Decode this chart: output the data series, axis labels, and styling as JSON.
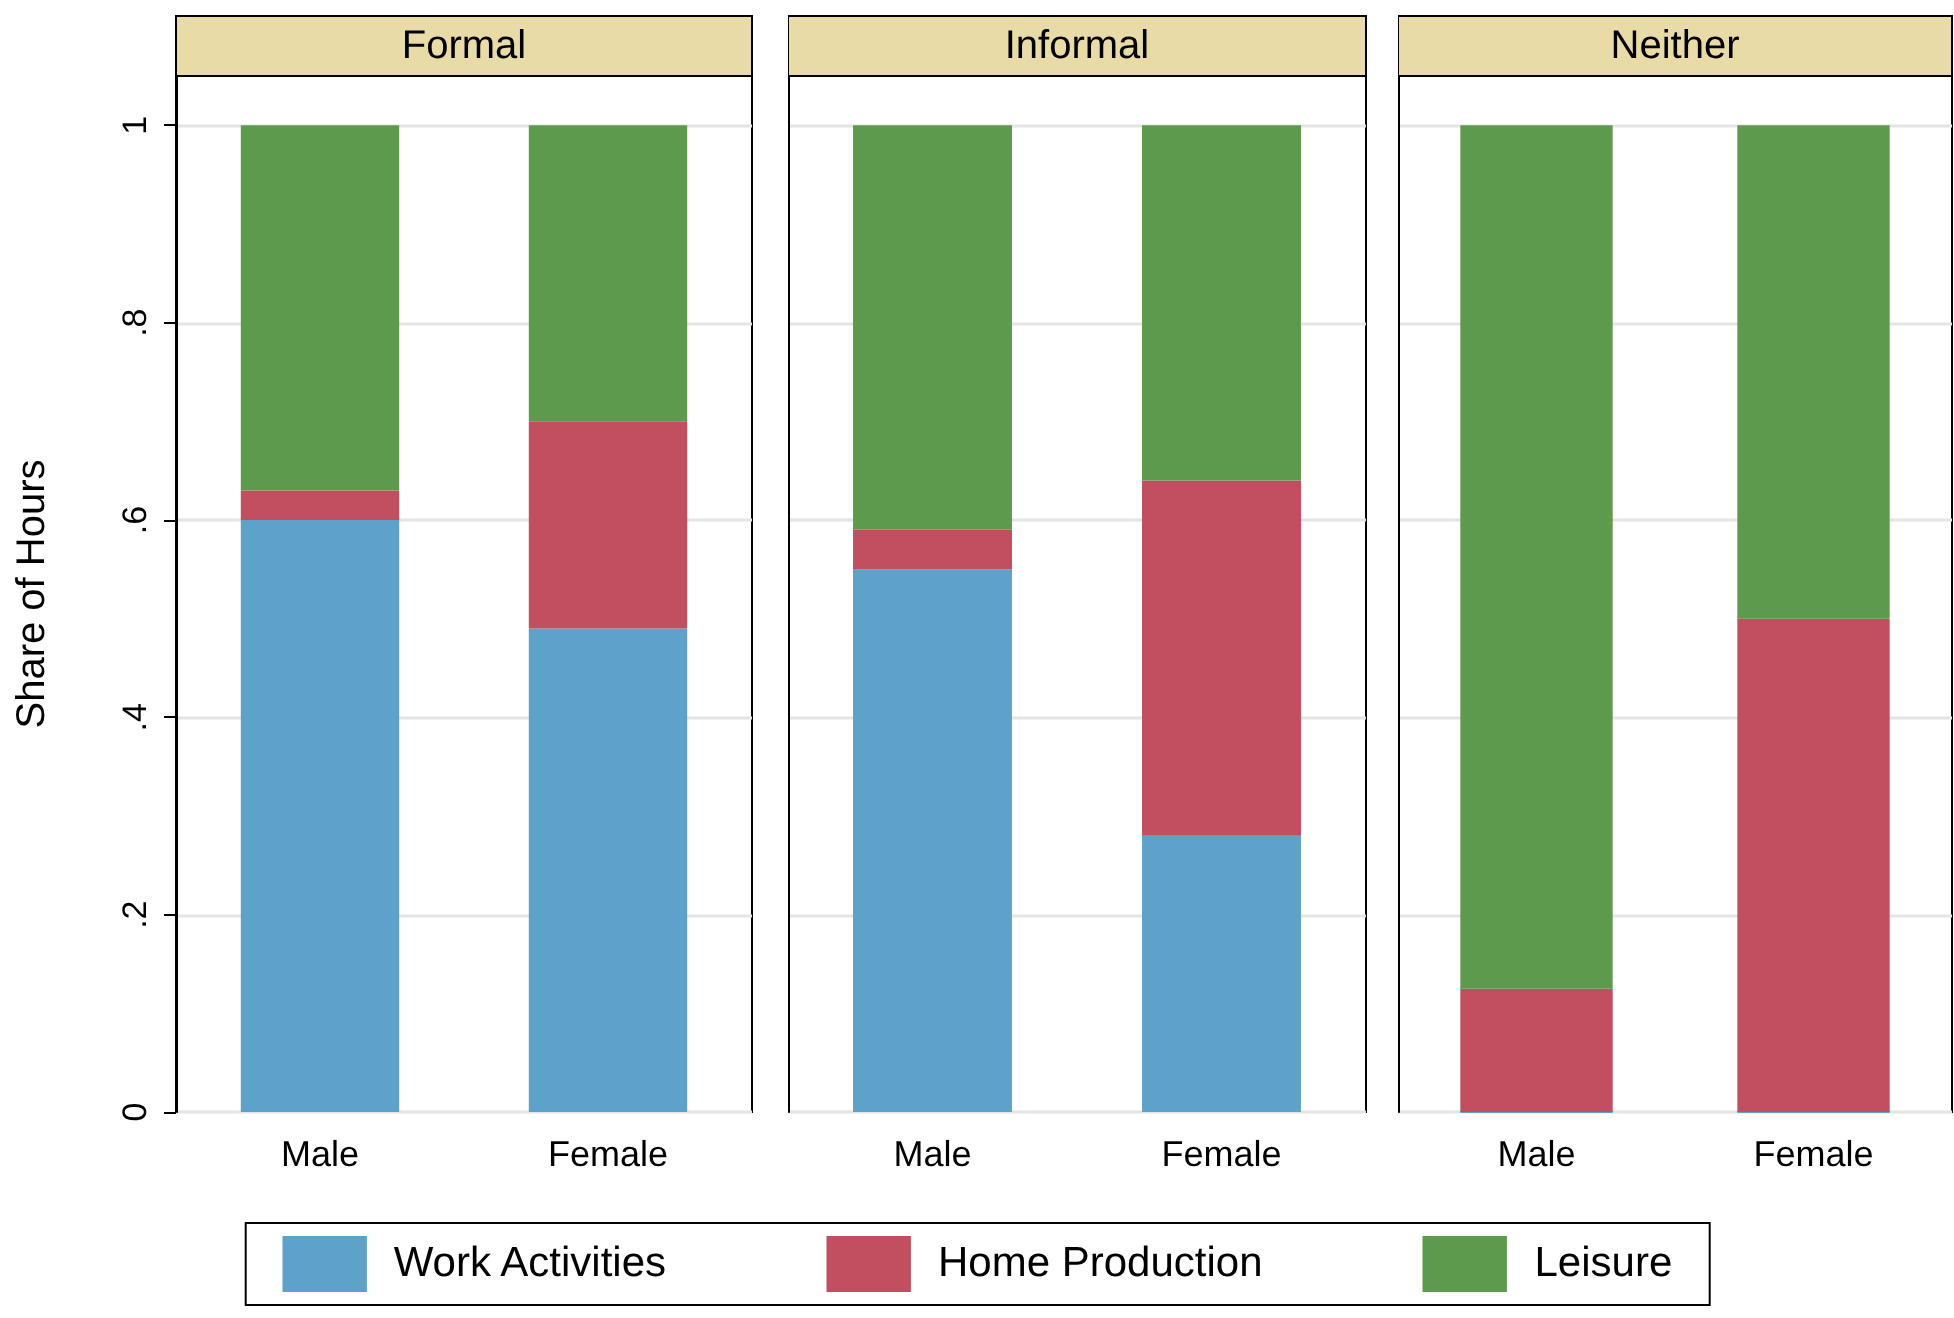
{
  "chart_data": [
    {
      "type": "bar",
      "title": "Formal",
      "ylabel": "Share of Hours",
      "categories": [
        "Male",
        "Female"
      ],
      "stacked": true,
      "ylim": [
        0,
        1.05
      ],
      "yticks": [
        0,
        {
          "value": 0.2,
          "label": ".2"
        },
        {
          "value": 0.4,
          "label": ".4"
        },
        {
          "value": 0.6,
          "label": ".6"
        },
        {
          "value": 0.8,
          "label": ".8"
        },
        1
      ],
      "grid": "y",
      "legend": "bottom",
      "series": [
        {
          "name": "Work Activities",
          "color": "#5fa2c9",
          "values": [
            0.6,
            0.49
          ]
        },
        {
          "name": "Home Production",
          "color": "#c14f60",
          "values": [
            0.03,
            0.21
          ]
        },
        {
          "name": "Leisure",
          "color": "#5e9a4d",
          "values": [
            0.37,
            0.3
          ]
        }
      ]
    },
    {
      "type": "bar",
      "title": "Informal",
      "categories": [
        "Male",
        "Female"
      ],
      "stacked": true,
      "ylim": [
        0,
        1.05
      ],
      "yticks": [
        0,
        0.2,
        0.4,
        0.6,
        0.8,
        1
      ],
      "grid": "y",
      "tick_labels": "x",
      "series": [
        {
          "color": "#5fa2c9",
          "values": [
            0.55,
            0.28
          ]
        },
        {
          "color": "#c14f60",
          "values": [
            0.04,
            0.36
          ]
        },
        {
          "color": "#5e9a4d",
          "values": [
            0.41,
            0.36
          ]
        }
      ]
    },
    {
      "type": "bar",
      "title": "Neither",
      "categories": [
        "Male",
        "Female"
      ],
      "stacked": true,
      "ylim": [
        0,
        1.05
      ],
      "yticks": [
        0,
        0.2,
        0.4,
        0.6,
        0.8,
        1
      ],
      "grid": "y",
      "tick_labels": "x",
      "series": [
        {
          "color": "#5fa2c9",
          "values": [
            0,
            0
          ]
        },
        {
          "color": "#c14f60",
          "values": [
            0.125,
            0.5
          ]
        },
        {
          "color": "#5e9a4d",
          "values": [
            0.875,
            0.5
          ]
        }
      ]
    }
  ]
}
